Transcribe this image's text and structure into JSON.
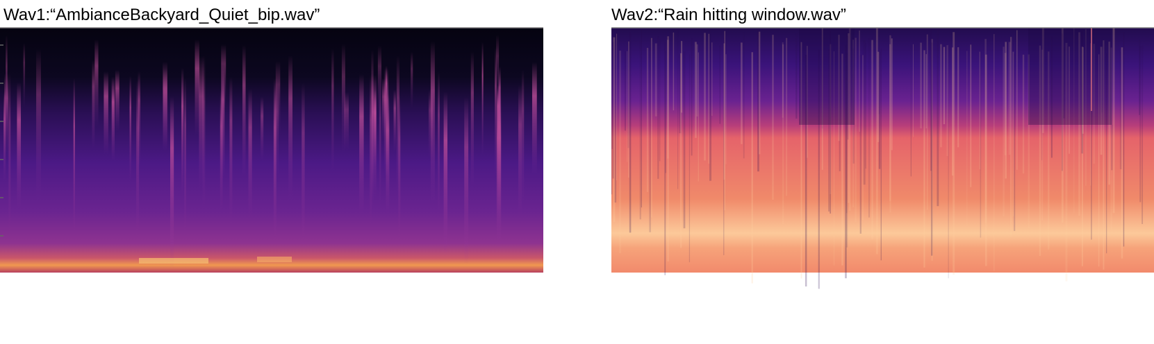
{
  "panels": [
    {
      "title": "Wav1:“AmbianceBackyard_Quiet_bip.wav”"
    },
    {
      "title": "Wav2:“Rain hitting window.wav”"
    }
  ]
}
